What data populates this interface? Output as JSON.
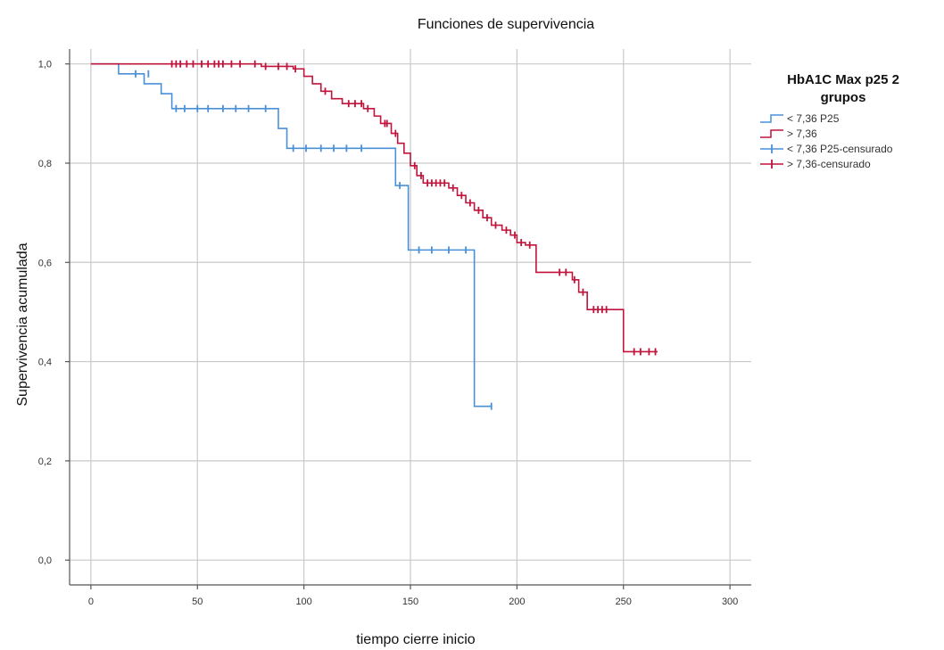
{
  "chart_data": {
    "type": "line",
    "subtype": "kaplan-meier-step",
    "title": "Funciones de supervivencia",
    "xlabel": "tiempo cierre inicio",
    "ylabel": "Supervivencia acumulada",
    "xlim": [
      -10,
      310
    ],
    "ylim": [
      -0.05,
      1.03
    ],
    "x_ticks": [
      0,
      50,
      100,
      150,
      200,
      250,
      300
    ],
    "x_tick_labels": [
      "0",
      "50",
      "100",
      "150",
      "200",
      "250",
      "300"
    ],
    "y_ticks": [
      0.0,
      0.2,
      0.4,
      0.6,
      0.8,
      1.0
    ],
    "y_tick_labels": [
      "0,0",
      "0,2",
      "0,4",
      "0,6",
      "0,8",
      "1,0"
    ],
    "grid": true,
    "legend_title": [
      "HbA1C Max p25 2",
      "grupos"
    ],
    "legend_placement": "right",
    "legend": [
      {
        "label": "< 7,36 P25",
        "kind": "line",
        "series": 0
      },
      {
        "label": "> 7,36",
        "kind": "line",
        "series": 1
      },
      {
        "label": "< 7,36 P25-censurado",
        "kind": "censor",
        "series": 0
      },
      {
        "label": "> 7,36-censurado",
        "kind": "censor",
        "series": 1
      }
    ],
    "series": [
      {
        "name": "< 7,36 P25",
        "color": "#4a90d9",
        "steps": [
          [
            0,
            1.0
          ],
          [
            13,
            0.98
          ],
          [
            25,
            0.96
          ],
          [
            33,
            0.94
          ],
          [
            38,
            0.91
          ],
          [
            88,
            0.87
          ],
          [
            92,
            0.83
          ],
          [
            143,
            0.755
          ],
          [
            149,
            0.625
          ],
          [
            180,
            0.31
          ],
          [
            188,
            0.31
          ]
        ],
        "censored": [
          [
            21,
            0.98
          ],
          [
            27,
            0.98
          ],
          [
            40,
            0.91
          ],
          [
            44,
            0.91
          ],
          [
            50,
            0.91
          ],
          [
            55,
            0.91
          ],
          [
            62,
            0.91
          ],
          [
            68,
            0.91
          ],
          [
            74,
            0.91
          ],
          [
            82,
            0.91
          ],
          [
            95,
            0.83
          ],
          [
            101,
            0.83
          ],
          [
            108,
            0.83
          ],
          [
            114,
            0.83
          ],
          [
            120,
            0.83
          ],
          [
            127,
            0.83
          ],
          [
            145,
            0.755
          ],
          [
            154,
            0.625
          ],
          [
            160,
            0.625
          ],
          [
            168,
            0.625
          ],
          [
            176,
            0.625
          ],
          [
            188,
            0.31
          ]
        ]
      },
      {
        "name": "> 7,36",
        "color": "#c0143c",
        "steps": [
          [
            0,
            1.0
          ],
          [
            80,
            0.995
          ],
          [
            95,
            0.99
          ],
          [
            100,
            0.975
          ],
          [
            104,
            0.96
          ],
          [
            108,
            0.945
          ],
          [
            113,
            0.93
          ],
          [
            118,
            0.92
          ],
          [
            128,
            0.91
          ],
          [
            133,
            0.895
          ],
          [
            136,
            0.88
          ],
          [
            141,
            0.86
          ],
          [
            144,
            0.84
          ],
          [
            147,
            0.82
          ],
          [
            150,
            0.795
          ],
          [
            153,
            0.775
          ],
          [
            156,
            0.76
          ],
          [
            168,
            0.75
          ],
          [
            172,
            0.735
          ],
          [
            176,
            0.72
          ],
          [
            180,
            0.705
          ],
          [
            184,
            0.69
          ],
          [
            188,
            0.675
          ],
          [
            193,
            0.665
          ],
          [
            197,
            0.655
          ],
          [
            200,
            0.64
          ],
          [
            204,
            0.635
          ],
          [
            209,
            0.58
          ],
          [
            226,
            0.565
          ],
          [
            229,
            0.54
          ],
          [
            233,
            0.505
          ],
          [
            250,
            0.42
          ],
          [
            266,
            0.42
          ]
        ],
        "censored": [
          [
            38,
            1.0
          ],
          [
            40,
            1.0
          ],
          [
            42,
            1.0
          ],
          [
            45,
            1.0
          ],
          [
            48,
            1.0
          ],
          [
            52,
            1.0
          ],
          [
            55,
            1.0
          ],
          [
            58,
            1.0
          ],
          [
            60,
            1.0
          ],
          [
            62,
            1.0
          ],
          [
            66,
            1.0
          ],
          [
            70,
            1.0
          ],
          [
            77,
            1.0
          ],
          [
            82,
            0.995
          ],
          [
            88,
            0.995
          ],
          [
            92,
            0.995
          ],
          [
            96,
            0.99
          ],
          [
            110,
            0.945
          ],
          [
            121,
            0.92
          ],
          [
            124,
            0.92
          ],
          [
            127,
            0.92
          ],
          [
            130,
            0.91
          ],
          [
            138,
            0.88
          ],
          [
            139,
            0.88
          ],
          [
            143,
            0.86
          ],
          [
            152,
            0.795
          ],
          [
            155,
            0.775
          ],
          [
            158,
            0.76
          ],
          [
            160,
            0.76
          ],
          [
            162,
            0.76
          ],
          [
            164,
            0.76
          ],
          [
            166,
            0.76
          ],
          [
            170,
            0.75
          ],
          [
            174,
            0.735
          ],
          [
            178,
            0.72
          ],
          [
            182,
            0.705
          ],
          [
            186,
            0.69
          ],
          [
            190,
            0.675
          ],
          [
            195,
            0.665
          ],
          [
            199,
            0.655
          ],
          [
            202,
            0.64
          ],
          [
            206,
            0.635
          ],
          [
            220,
            0.58
          ],
          [
            223,
            0.58
          ],
          [
            227,
            0.565
          ],
          [
            231,
            0.54
          ],
          [
            236,
            0.505
          ],
          [
            238,
            0.505
          ],
          [
            240,
            0.505
          ],
          [
            242,
            0.505
          ],
          [
            255,
            0.42
          ],
          [
            258,
            0.42
          ],
          [
            262,
            0.42
          ],
          [
            265,
            0.42
          ]
        ]
      }
    ]
  }
}
